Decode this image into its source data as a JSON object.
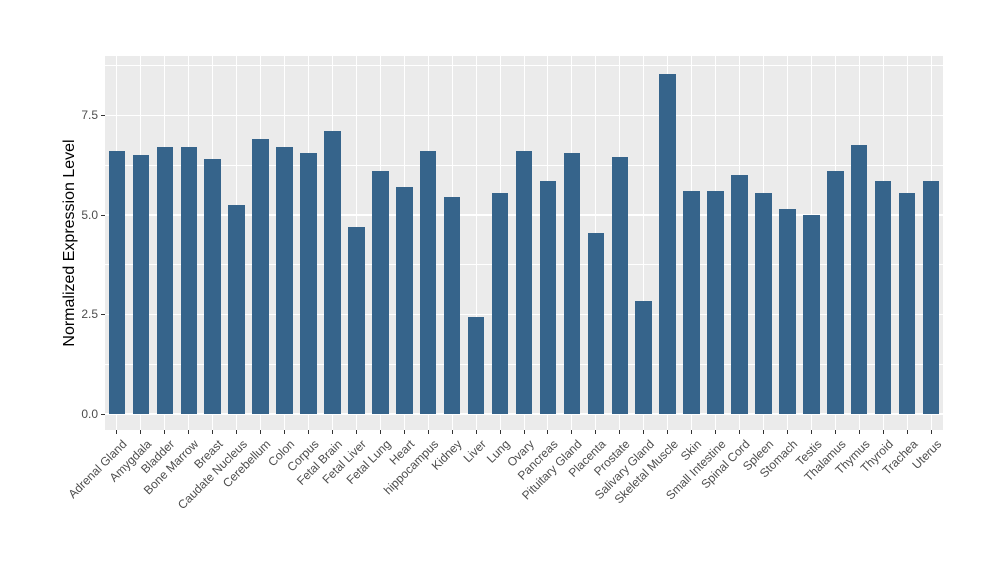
{
  "chart_data": {
    "type": "bar",
    "title": "",
    "ylabel": "Normalized Expression Level",
    "xlabel": "",
    "categories": [
      "Adrenal Gland",
      "Amygdala",
      "Bladder",
      "Bone Marrow",
      "Breast",
      "Caudate Nucleus",
      "Cerebellum",
      "Colon",
      "Corpus",
      "Fetal Brain",
      "Fetal Liver",
      "Fetal Lung",
      "Heart",
      "hippocampus",
      "Kidney",
      "Liver",
      "Lung",
      "Ovary",
      "Pancreas",
      "Pituitary Gland",
      "Placenta",
      "Prostate",
      "Salivary Gland",
      "Skeletal Muscle",
      "Skin",
      "Small Intestine",
      "Spinal Cord",
      "Spleen",
      "Stomach",
      "Testis",
      "Thalamus",
      "Thymus",
      "Thyroid",
      "Trachea",
      "Uterus"
    ],
    "values": [
      6.6,
      6.5,
      6.7,
      6.7,
      6.4,
      5.25,
      6.9,
      6.7,
      6.55,
      7.1,
      4.7,
      6.1,
      5.7,
      6.6,
      5.45,
      2.45,
      5.55,
      6.6,
      5.85,
      6.55,
      4.55,
      6.45,
      2.85,
      8.55,
      5.6,
      5.6,
      6.0,
      5.55,
      5.15,
      5.0,
      6.1,
      6.75,
      5.85,
      5.55,
      5.85
    ],
    "ylim": [
      0,
      9.0
    ],
    "y_major_ticks": [
      0,
      2.5,
      5,
      7.5
    ],
    "y_tick_labels": [
      "0.0",
      "2.5",
      "5.0",
      "7.5"
    ],
    "y_minor_ticks": [
      1.25,
      3.75,
      6.25,
      8.75
    ],
    "grid": "horizontal major+minor, vertical major at each category center",
    "legend_position": "none",
    "colors": {
      "bar": "#36648B",
      "panel_background": "#EBEBEB",
      "gridline": "#FFFFFF",
      "axis_text": "#4D4D4D",
      "axis_title": "#000000",
      "tick_mark": "#333333",
      "figure_background": "#FFFFFF"
    }
  }
}
